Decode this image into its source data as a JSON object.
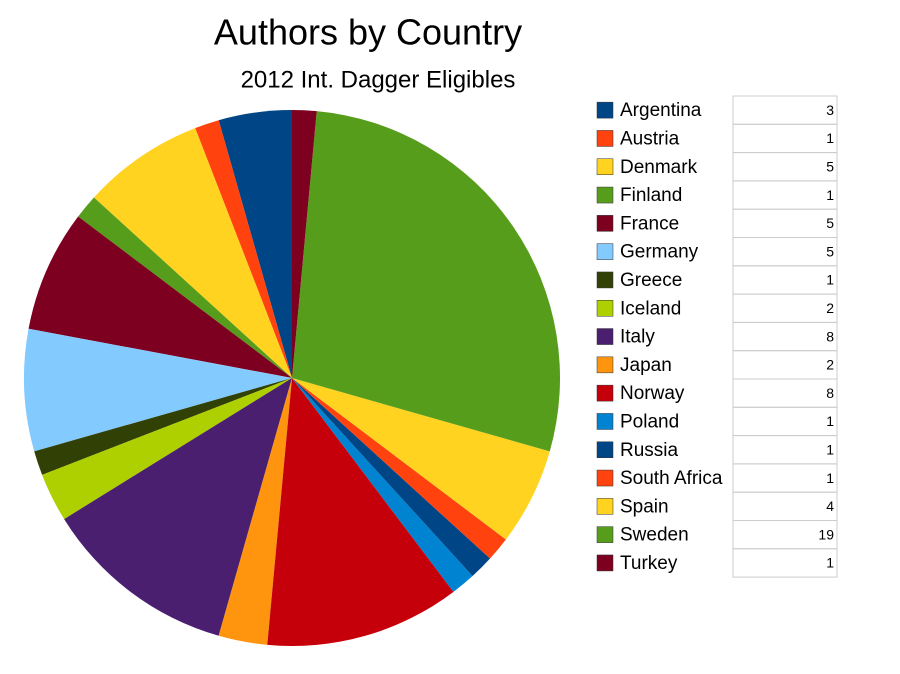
{
  "chart_data": {
    "type": "pie",
    "title": "Authors by Country",
    "subtitle": "2012 Int. Dagger Eligibles",
    "categories": [
      "Argentina",
      "Austria",
      "Denmark",
      "Finland",
      "France",
      "Germany",
      "Greece",
      "Iceland",
      "Italy",
      "Japan",
      "Norway",
      "Poland",
      "Russia",
      "South Africa",
      "Spain",
      "Sweden",
      "Turkey"
    ],
    "values": [
      3,
      1,
      5,
      1,
      5,
      5,
      1,
      2,
      8,
      2,
      8,
      1,
      1,
      1,
      4,
      19,
      1
    ],
    "colors": [
      "#004586",
      "#ff420e",
      "#ffd320",
      "#579d1c",
      "#7e0021",
      "#83caff",
      "#314004",
      "#aecf00",
      "#4b1f6f",
      "#ff950e",
      "#c5000b",
      "#0084d1",
      "#004586",
      "#ff420e",
      "#ffd320",
      "#579d1c",
      "#7e0021"
    ]
  }
}
